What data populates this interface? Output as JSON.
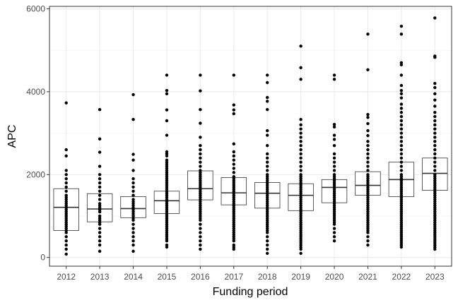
{
  "chart_data": {
    "type": "boxplot",
    "xlabel": "Funding period",
    "ylabel": "APC",
    "ylim": [
      -210,
      6060
    ],
    "y_ticks": [
      0,
      2000,
      4000,
      6000
    ],
    "grid": true,
    "categories": [
      "2012",
      "2013",
      "2014",
      "2015",
      "2016",
      "2017",
      "2018",
      "2019",
      "2020",
      "2021",
      "2022",
      "2023"
    ],
    "boxes": [
      {
        "q1": 650,
        "median": 1210,
        "q3": 1660
      },
      {
        "q1": 860,
        "median": 1170,
        "q3": 1540
      },
      {
        "q1": 960,
        "median": 1180,
        "q3": 1470
      },
      {
        "q1": 1060,
        "median": 1370,
        "q3": 1600
      },
      {
        "q1": 1390,
        "median": 1660,
        "q3": 2090
      },
      {
        "q1": 1270,
        "median": 1560,
        "q3": 1930
      },
      {
        "q1": 1190,
        "median": 1550,
        "q3": 1810
      },
      {
        "q1": 1130,
        "median": 1500,
        "q3": 1780
      },
      {
        "q1": 1320,
        "median": 1690,
        "q3": 1880
      },
      {
        "q1": 1500,
        "median": 1740,
        "q3": 2070
      },
      {
        "q1": 1470,
        "median": 1880,
        "q3": 2300
      },
      {
        "q1": 1620,
        "median": 2030,
        "q3": 2400
      }
    ],
    "points": [
      [
        3730,
        2600,
        2450,
        2100,
        2000,
        1900,
        1800,
        1700,
        1600,
        1500,
        1450,
        1400,
        1350,
        1300,
        1250,
        1200,
        1150,
        1100,
        1050,
        1000,
        950,
        900,
        850,
        800,
        750,
        700,
        650,
        600,
        500,
        400,
        300,
        200,
        80
      ],
      [
        3570,
        2860,
        2540,
        2200,
        2000,
        1900,
        1800,
        1700,
        1600,
        1500,
        1400,
        1300,
        1250,
        1200,
        1150,
        1100,
        1000,
        950,
        900,
        850,
        800,
        700,
        600,
        500,
        400,
        300,
        150
      ],
      [
        3930,
        3330,
        2490,
        2350,
        2100,
        1900,
        1800,
        1700,
        1600,
        1500,
        1400,
        1350,
        1300,
        1250,
        1200,
        1150,
        1100,
        1050,
        1000,
        950,
        900,
        800,
        700,
        600,
        500,
        400,
        300,
        150
      ],
      [
        4400,
        4030,
        3950,
        3560,
        3300,
        2950,
        2550,
        2500,
        2450,
        2350,
        2300,
        2250,
        2200,
        2150,
        2100,
        2050,
        2000,
        1950,
        1900,
        1850,
        1800,
        1750,
        1700,
        1650,
        1600,
        1550,
        1500,
        1450,
        1400,
        1350,
        1300,
        1250,
        1200,
        1150,
        1100,
        1050,
        1000,
        950,
        900,
        850,
        800,
        750,
        700,
        650,
        600,
        550,
        500,
        450,
        400,
        300,
        250
      ],
      [
        4400,
        4020,
        3570,
        3240,
        2900,
        2700,
        2600,
        2500,
        2400,
        2300,
        2200,
        2100,
        2050,
        2000,
        1950,
        1900,
        1850,
        1800,
        1750,
        1700,
        1650,
        1600,
        1550,
        1500,
        1450,
        1400,
        1350,
        1300,
        1250,
        1200,
        1150,
        1100,
        1050,
        1000,
        950,
        900,
        800,
        700,
        600,
        500,
        400,
        300,
        200
      ],
      [
        4400,
        3680,
        3560,
        3470,
        2740,
        2550,
        2450,
        2350,
        2250,
        2150,
        2050,
        1950,
        1900,
        1850,
        1800,
        1750,
        1700,
        1650,
        1600,
        1550,
        1500,
        1450,
        1400,
        1350,
        1300,
        1250,
        1200,
        1150,
        1100,
        1050,
        1000,
        950,
        900,
        850,
        800,
        750,
        700,
        650,
        600,
        550,
        500,
        450,
        400,
        300,
        250,
        200
      ],
      [
        4400,
        4220,
        3860,
        3770,
        3570,
        3060,
        2950,
        2700,
        2500,
        2400,
        2300,
        2200,
        2100,
        2000,
        1950,
        1900,
        1850,
        1800,
        1750,
        1700,
        1650,
        1600,
        1550,
        1500,
        1450,
        1400,
        1350,
        1300,
        1250,
        1200,
        1150,
        1100,
        1050,
        1000,
        950,
        900,
        850,
        800,
        750,
        700,
        650,
        600,
        500,
        400,
        300,
        200,
        100
      ],
      [
        5100,
        4580,
        4300,
        3330,
        3200,
        3100,
        3000,
        2900,
        2800,
        2700,
        2600,
        2500,
        2400,
        2300,
        2200,
        2100,
        2000,
        1950,
        1900,
        1850,
        1800,
        1750,
        1700,
        1650,
        1600,
        1550,
        1500,
        1450,
        1400,
        1350,
        1300,
        1250,
        1200,
        1150,
        1100,
        1050,
        1000,
        950,
        900,
        850,
        800,
        750,
        700,
        650,
        600,
        550,
        500,
        450,
        400,
        350,
        300,
        250,
        200,
        100
      ],
      [
        4400,
        4300,
        3210,
        3150,
        2950,
        2850,
        2700,
        2500,
        2400,
        2300,
        2200,
        2100,
        2000,
        1950,
        1900,
        1850,
        1800,
        1750,
        1700,
        1650,
        1600,
        1550,
        1500,
        1450,
        1400,
        1350,
        1300,
        1250,
        1200,
        1150,
        1100,
        1050,
        1000,
        950,
        900,
        850,
        800,
        700,
        600,
        500,
        400
      ],
      [
        5390,
        4530,
        3450,
        3380,
        3230,
        3060,
        2940,
        2800,
        2700,
        2600,
        2500,
        2400,
        2300,
        2200,
        2100,
        2000,
        1950,
        1900,
        1850,
        1800,
        1750,
        1700,
        1650,
        1600,
        1550,
        1500,
        1450,
        1400,
        1350,
        1300,
        1250,
        1200,
        1150,
        1100,
        1050,
        1000,
        950,
        900,
        850,
        800,
        750,
        700,
        650,
        600,
        500,
        400,
        300
      ],
      [
        5580,
        5390,
        4700,
        4650,
        4400,
        4150,
        4030,
        3950,
        3850,
        3700,
        3600,
        3500,
        3400,
        3300,
        3200,
        3100,
        3000,
        2900,
        2800,
        2700,
        2600,
        2500,
        2400,
        2300,
        2200,
        2100,
        2000,
        1950,
        1900,
        1850,
        1800,
        1750,
        1700,
        1650,
        1600,
        1550,
        1500,
        1450,
        1400,
        1350,
        1300,
        1250,
        1200,
        1150,
        1100,
        1050,
        1000,
        950,
        900,
        850,
        800,
        750,
        700,
        650,
        600,
        550,
        500,
        450,
        400,
        350,
        300,
        250
      ],
      [
        5780,
        4860,
        4830,
        4200,
        4100,
        3950,
        3800,
        3650,
        3500,
        3400,
        3300,
        3200,
        3100,
        3000,
        2900,
        2800,
        2700,
        2600,
        2500,
        2400,
        2300,
        2200,
        2100,
        2000,
        1950,
        1900,
        1850,
        1800,
        1750,
        1700,
        1650,
        1600,
        1550,
        1500,
        1450,
        1400,
        1350,
        1300,
        1250,
        1200,
        1150,
        1100,
        1050,
        1000,
        950,
        900,
        850,
        800,
        750,
        700,
        650,
        600,
        550,
        500,
        450,
        400,
        350,
        300,
        250,
        200
      ]
    ]
  }
}
